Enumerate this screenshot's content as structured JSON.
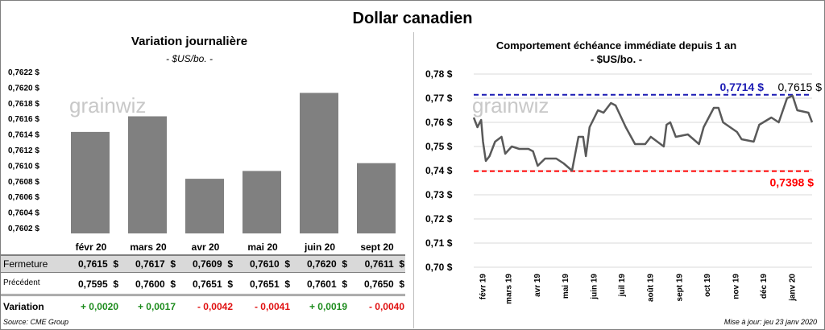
{
  "title": "Dollar canadien",
  "left_panel": {
    "title": "Variation  journalière",
    "subtitle": "- $US/bo. -",
    "watermark": "grainwiz"
  },
  "right_panel": {
    "title": "Comportement échéance immédiate depuis 1 an",
    "subtitle": "- $US/bo. -",
    "watermark": "grainwiz"
  },
  "table": {
    "columns": [
      "févr 20",
      "mars 20",
      "avr 20",
      "mai 20",
      "juin 20",
      "sept 20"
    ],
    "rows": [
      {
        "label": "Fermeture",
        "values": [
          "0,7615  $",
          "0,7617  $",
          "0,7609  $",
          "0,7610  $",
          "0,7620  $",
          "0,7611  $"
        ]
      },
      {
        "label": "Précédent",
        "values": [
          "0,7595  $",
          "0,7600  $",
          "0,7651  $",
          "0,7651  $",
          "0,7601  $",
          "0,7650  $"
        ]
      },
      {
        "label": "Variation",
        "values": [
          "+ 0,0020",
          "+ 0,0017",
          "- 0,0042",
          "- 0,0041",
          "+ 0,0019",
          "- 0,0040"
        ],
        "signs": [
          "pos",
          "pos",
          "neg",
          "neg",
          "pos",
          "neg"
        ]
      }
    ]
  },
  "source": "Source: CME Group",
  "updated": "Mise à jour: jeu 23 janv 2020",
  "chart_data": [
    {
      "type": "bar",
      "title": "Variation  journalière",
      "subtitle": "- $US/bo. -",
      "categories": [
        "févr 20",
        "mars 20",
        "avr 20",
        "mai 20",
        "juin 20",
        "sept 20"
      ],
      "values": [
        0.7615,
        0.7617,
        0.7609,
        0.761,
        0.762,
        0.7611
      ],
      "ylim": [
        0.7602,
        0.7622
      ],
      "yticks": [
        "0,7602 $",
        "0,7604 $",
        "0,7606 $",
        "0,7608 $",
        "0,7610 $",
        "0,7612 $",
        "0,7614 $",
        "0,7616 $",
        "0,7618 $",
        "0,7620 $",
        "0,7622 $"
      ],
      "bar_color": "#808080",
      "grid": false
    },
    {
      "type": "line",
      "title": "Comportement échéance immédiate depuis 1 an",
      "subtitle": "- $US/bo. -",
      "ylim": [
        0.7,
        0.78
      ],
      "yticks": [
        "0,70 $",
        "0,71 $",
        "0,72 $",
        "0,73 $",
        "0,74 $",
        "0,75 $",
        "0,76 $",
        "0,77 $",
        "0,78 $"
      ],
      "xticks": [
        "févr 19",
        "mars 19",
        "avr 19",
        "mai 19",
        "juin 19",
        "juil 19",
        "août 19",
        "sept 19",
        "oct 19",
        "nov 19",
        "déc 19",
        "janv 20"
      ],
      "xrange": [
        "2019-01-23",
        "2020-01-23"
      ],
      "grid": true,
      "line_color": "#595959",
      "x": [
        "2019-01-23",
        "2019-01-27",
        "2019-01-31",
        "2019-02-02",
        "2019-02-05",
        "2019-02-09",
        "2019-02-15",
        "2019-02-22",
        "2019-02-26",
        "2019-03-05",
        "2019-03-13",
        "2019-03-23",
        "2019-03-28",
        "2019-04-02",
        "2019-04-10",
        "2019-04-22",
        "2019-04-30",
        "2019-05-09",
        "2019-05-16",
        "2019-05-21",
        "2019-05-24",
        "2019-05-28",
        "2019-06-06",
        "2019-06-12",
        "2019-06-20",
        "2019-06-25",
        "2019-07-06",
        "2019-07-16",
        "2019-07-27",
        "2019-08-02",
        "2019-08-16",
        "2019-08-19",
        "2019-08-23",
        "2019-08-29",
        "2019-09-11",
        "2019-09-23",
        "2019-09-28",
        "2019-10-09",
        "2019-10-14",
        "2019-10-19",
        "2019-11-03",
        "2019-11-08",
        "2019-11-21",
        "2019-11-27",
        "2019-12-10",
        "2019-12-18",
        "2019-12-27",
        "2020-01-02",
        "2020-01-07",
        "2020-01-19",
        "2020-01-23"
      ],
      "y": [
        0.762,
        0.758,
        0.761,
        0.752,
        0.744,
        0.746,
        0.752,
        0.754,
        0.747,
        0.75,
        0.749,
        0.749,
        0.748,
        0.742,
        0.745,
        0.745,
        0.743,
        0.74,
        0.754,
        0.754,
        0.746,
        0.758,
        0.765,
        0.764,
        0.768,
        0.767,
        0.758,
        0.751,
        0.751,
        0.754,
        0.75,
        0.759,
        0.76,
        0.754,
        0.755,
        0.751,
        0.758,
        0.766,
        0.766,
        0.76,
        0.756,
        0.753,
        0.752,
        0.759,
        0.762,
        0.76,
        0.77,
        0.771,
        0.765,
        0.764,
        0.76
      ],
      "reference_lines": [
        {
          "value": 0.7714,
          "label": "0,7714 $",
          "color": "#1c1cb4"
        },
        {
          "value": 0.7398,
          "label": "0,7398 $",
          "color": "#ff0000"
        }
      ],
      "last_label": "0,7615 $"
    }
  ]
}
